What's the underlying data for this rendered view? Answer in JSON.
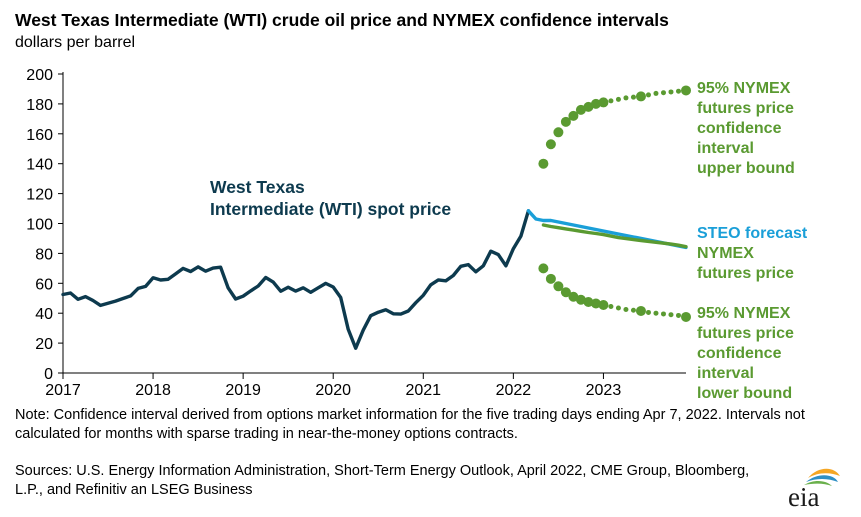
{
  "title": "West Texas Intermediate (WTI) crude oil price and NYMEX confidence intervals",
  "subtitle": "dollars per barrel",
  "note": "Note: Confidence interval derived from options market information for the five trading days ending Apr 7, 2022. Intervals not calculated for months with sparse trading in near-the-money options contracts.",
  "sources": "Sources: U.S. Energy Information Administration, Short-Term Energy Outlook, April 2022, CME Group, Bloomberg, L.P., and Refinitiv an LSEG Business",
  "logo_text": "eia",
  "colors": {
    "wti": "#0d3a4e",
    "steo": "#1a9fd8",
    "nymex": "#5a9a31",
    "axis": "#000000"
  },
  "chart_data": {
    "type": "line",
    "xlim": [
      "2017-01",
      "2023-12"
    ],
    "ylim": [
      0,
      200
    ],
    "y_ticks": [
      "0",
      "20",
      "40",
      "60",
      "80",
      "100",
      "120",
      "140",
      "160",
      "180",
      "200"
    ],
    "x_ticks": [
      "2017",
      "2018",
      "2019",
      "2020",
      "2021",
      "2022",
      "2023"
    ],
    "grid": false,
    "labels": {
      "wti": [
        "West Texas",
        "Intermediate (WTI) spot price"
      ],
      "upper": [
        "95% NYMEX",
        "futures price",
        "confidence",
        "interval",
        "upper bound"
      ],
      "steo": [
        "STEO forecast"
      ],
      "nymex": [
        "NYMEX",
        "futures price"
      ],
      "lower": [
        "95% NYMEX",
        "futures price",
        "confidence",
        "interval",
        "lower bound"
      ]
    },
    "series": [
      {
        "key": "wti",
        "style": "line",
        "x": [
          "2017-01",
          "2017-02",
          "2017-03",
          "2017-04",
          "2017-05",
          "2017-06",
          "2017-07",
          "2017-08",
          "2017-09",
          "2017-10",
          "2017-11",
          "2017-12",
          "2018-01",
          "2018-02",
          "2018-03",
          "2018-04",
          "2018-05",
          "2018-06",
          "2018-07",
          "2018-08",
          "2018-09",
          "2018-10",
          "2018-11",
          "2018-12",
          "2019-01",
          "2019-02",
          "2019-03",
          "2019-04",
          "2019-05",
          "2019-06",
          "2019-07",
          "2019-08",
          "2019-09",
          "2019-10",
          "2019-11",
          "2019-12",
          "2020-01",
          "2020-02",
          "2020-03",
          "2020-04",
          "2020-05",
          "2020-06",
          "2020-07",
          "2020-08",
          "2020-09",
          "2020-10",
          "2020-11",
          "2020-12",
          "2021-01",
          "2021-02",
          "2021-03",
          "2021-04",
          "2021-05",
          "2021-06",
          "2021-07",
          "2021-08",
          "2021-09",
          "2021-10",
          "2021-11",
          "2021-12",
          "2022-01",
          "2022-02",
          "2022-03"
        ],
        "y": [
          52.5,
          53.5,
          49.3,
          51.1,
          48.5,
          45.2,
          46.6,
          48.1,
          49.8,
          51.6,
          56.6,
          57.9,
          63.7,
          62.2,
          62.7,
          66.3,
          70.0,
          67.9,
          71.0,
          68.1,
          70.2,
          70.8,
          57.0,
          49.5,
          51.4,
          54.9,
          58.2,
          63.9,
          60.8,
          54.7,
          57.4,
          54.8,
          57.0,
          54.0,
          57.0,
          59.9,
          57.5,
          50.5,
          29.2,
          16.6,
          28.6,
          38.3,
          40.7,
          42.3,
          39.6,
          39.4,
          41.5,
          47.0,
          52.0,
          59.0,
          62.3,
          61.7,
          65.2,
          71.4,
          72.5,
          67.7,
          71.7,
          81.5,
          79.2,
          71.7,
          83.2,
          91.6,
          108.5
        ]
      },
      {
        "key": "steo",
        "style": "line",
        "x": [
          "2022-03",
          "2022-04",
          "2022-05",
          "2022-06",
          "2022-07",
          "2022-08",
          "2022-09",
          "2022-10",
          "2022-11",
          "2022-12",
          "2023-01",
          "2023-02",
          "2023-03",
          "2023-04",
          "2023-05",
          "2023-06",
          "2023-07",
          "2023-08",
          "2023-09",
          "2023-10",
          "2023-11",
          "2023-12"
        ],
        "y": [
          108.5,
          103,
          102,
          102,
          101,
          100,
          99,
          98,
          97,
          96,
          95,
          94,
          93,
          92,
          91,
          90,
          89,
          88,
          87,
          86,
          85,
          84
        ]
      },
      {
        "key": "nymex",
        "style": "line",
        "x": [
          "2022-05",
          "2022-06",
          "2022-07",
          "2022-08",
          "2022-09",
          "2022-10",
          "2022-11",
          "2022-12",
          "2023-01",
          "2023-02",
          "2023-03",
          "2023-04",
          "2023-05",
          "2023-06",
          "2023-07",
          "2023-08",
          "2023-09",
          "2023-10",
          "2023-11",
          "2023-12"
        ],
        "y": [
          99,
          98,
          97.2,
          96.4,
          95.6,
          94.8,
          94,
          93.3,
          92.6,
          91.6,
          90.6,
          89.9,
          89.2,
          88.6,
          88,
          87.4,
          86.8,
          86.2,
          85.5,
          84.5
        ]
      },
      {
        "key": "upper",
        "style": "dots",
        "x": [
          "2022-05",
          "2022-06",
          "2022-07",
          "2022-08",
          "2022-09",
          "2022-10",
          "2022-11",
          "2022-12",
          "2023-01",
          "2023-02",
          "2023-03",
          "2023-04",
          "2023-05",
          "2023-06",
          "2023-07",
          "2023-08",
          "2023-09",
          "2023-10",
          "2023-11",
          "2023-12"
        ],
        "y": [
          140,
          153,
          161,
          168,
          172,
          176,
          178,
          180,
          181,
          182,
          183,
          184,
          184.5,
          185,
          186,
          187,
          187.5,
          188,
          188.5,
          189
        ],
        "sizes": [
          5,
          5,
          5,
          5,
          5,
          5,
          5,
          5,
          5,
          2.5,
          2.5,
          2.5,
          2.5,
          5,
          2.5,
          2.5,
          2.5,
          2.5,
          2.5,
          5
        ]
      },
      {
        "key": "lower",
        "style": "dots",
        "x": [
          "2022-05",
          "2022-06",
          "2022-07",
          "2022-08",
          "2022-09",
          "2022-10",
          "2022-11",
          "2022-12",
          "2023-01",
          "2023-02",
          "2023-03",
          "2023-04",
          "2023-05",
          "2023-06",
          "2023-07",
          "2023-08",
          "2023-09",
          "2023-10",
          "2023-11",
          "2023-12"
        ],
        "y": [
          70,
          63,
          58,
          54,
          51,
          49,
          47.5,
          46.5,
          45.5,
          44.5,
          43.5,
          42.5,
          42,
          41.5,
          40.5,
          40,
          39.5,
          39,
          38.5,
          37.5
        ],
        "sizes": [
          5,
          5,
          5,
          5,
          5,
          5,
          5,
          5,
          5,
          2.5,
          2.5,
          2.5,
          2.5,
          5,
          2.5,
          2.5,
          2.5,
          2.5,
          2.5,
          5
        ]
      }
    ]
  }
}
